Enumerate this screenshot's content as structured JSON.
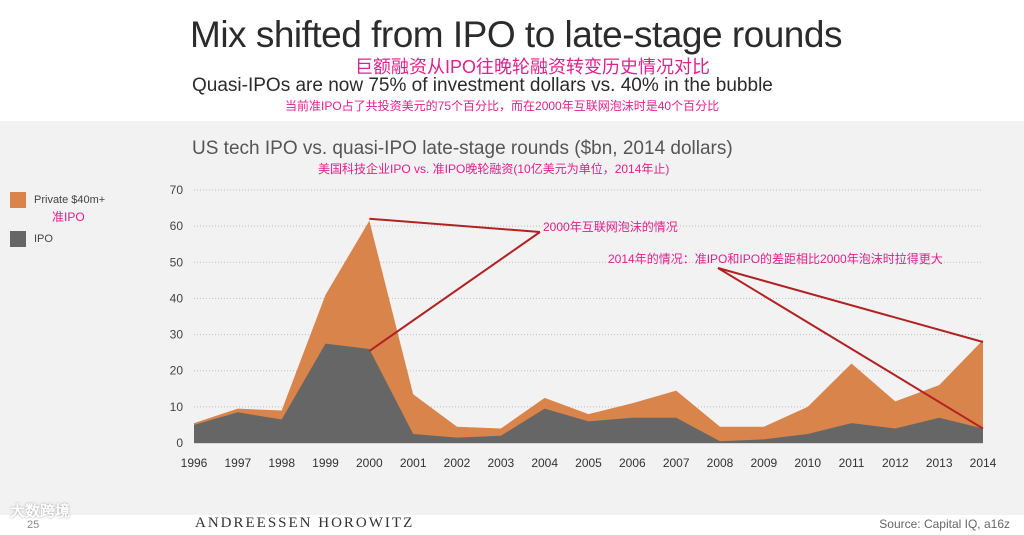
{
  "slide": {
    "title": "Mix shifted from IPO to late-stage rounds",
    "title_cn": "巨额融资从IPO往晚轮融资转变历史情况对比",
    "subtitle": "Quasi-IPOs are now 75% of investment dollars vs. 40% in the bubble",
    "subtitle_cn": "当前准IPO占了共投资美元的75个百分比，而在2000年互联网泡沫时是40个百分比",
    "footer_logo": "ANDREESSEN HOROWITZ",
    "source": "Source: Capital IQ, a16z",
    "page_number": "25",
    "watermark": "大数跨境"
  },
  "colors": {
    "private": "#d9844a",
    "ipo": "#666666",
    "annotation": "#b22222",
    "cn_text": "#e0208c"
  },
  "chart_data": {
    "type": "area",
    "title": "US tech IPO vs. quasi-IPO late-stage rounds ($bn, 2014 dollars)",
    "title_cn": "美国科技企业IPO vs. 准IPO晚轮融资(10亿美元为单位，2014年止)",
    "categories": [
      "1996",
      "1997",
      "1998",
      "1999",
      "2000",
      "2001",
      "2002",
      "2003",
      "2004",
      "2005",
      "2006",
      "2007",
      "2008",
      "2009",
      "2010",
      "2011",
      "2012",
      "2013",
      "2014"
    ],
    "series": [
      {
        "name": "IPO",
        "values": [
          5,
          8.5,
          6.5,
          27.5,
          26,
          2.5,
          1.5,
          2,
          9.5,
          6,
          7,
          7,
          0.5,
          1,
          2.5,
          5.5,
          4,
          7,
          4
        ]
      },
      {
        "name": "Private $40m+",
        "name_cn": "准IPO",
        "values": [
          0.5,
          1,
          2.5,
          13.5,
          35.5,
          11,
          3,
          2,
          3,
          2,
          4,
          7.5,
          4,
          3.5,
          7.5,
          16.5,
          7.5,
          9,
          24.5
        ]
      }
    ],
    "stacked": true,
    "ylim": [
      0,
      70
    ],
    "yticks": [
      0,
      10,
      20,
      30,
      40,
      50,
      60,
      70
    ],
    "grid": true,
    "annotations": [
      {
        "text": "2000年互联网泡沫的情况"
      },
      {
        "text": "2014年的情况：准IPO和IPO的差距相比2000年泡沫时拉得更大"
      }
    ]
  }
}
